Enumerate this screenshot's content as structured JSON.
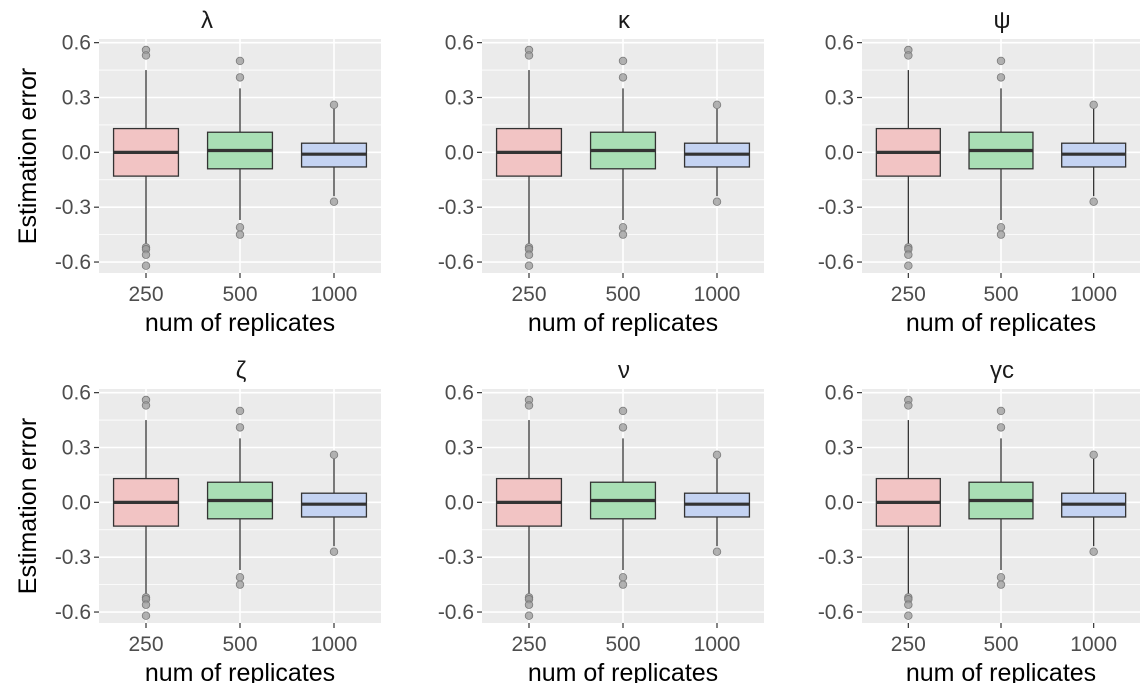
{
  "figure": {
    "ylabel": "Estimation error",
    "xlabel": "num of replicates"
  },
  "chart_data": [
    {
      "type": "box",
      "title": "λ",
      "xlabel": "num of replicates",
      "ylabel": "Estimation error",
      "categories": [
        "250",
        "500",
        "1000"
      ],
      "ylim": [
        -0.66,
        0.62
      ],
      "yticks": [
        0.6,
        0.3,
        0.0,
        -0.3,
        -0.6
      ],
      "ytick_labels": [
        "0.6",
        "0.3",
        "0.0",
        "-0.3",
        "-0.6"
      ],
      "grid": true,
      "colors": [
        "#f2c4c4",
        "#a9dfb5",
        "#c4d3f2"
      ],
      "boxes": [
        {
          "category": "250",
          "q1": -0.13,
          "median": 0.0,
          "q3": 0.13,
          "whisker_low": -0.5,
          "whisker_high": 0.45,
          "outliers": [
            0.56,
            0.53,
            -0.52,
            -0.53,
            -0.56,
            -0.62
          ]
        },
        {
          "category": "500",
          "q1": -0.09,
          "median": 0.01,
          "q3": 0.11,
          "whisker_low": -0.37,
          "whisker_high": 0.35,
          "outliers": [
            0.5,
            0.41,
            -0.41,
            -0.45
          ]
        },
        {
          "category": "1000",
          "q1": -0.08,
          "median": -0.01,
          "q3": 0.05,
          "whisker_low": -0.24,
          "whisker_high": 0.24,
          "outliers": [
            0.26,
            -0.27
          ]
        }
      ]
    },
    {
      "type": "box",
      "title": "κ",
      "xlabel": "num of replicates",
      "ylabel": "",
      "categories": [
        "250",
        "500",
        "1000"
      ],
      "ylim": [
        -0.66,
        0.62
      ],
      "yticks": [
        0.6,
        0.3,
        0.0,
        -0.3,
        -0.6
      ],
      "ytick_labels": [
        "0.6",
        "0.3",
        "0.0",
        "-0.3",
        "-0.6"
      ],
      "grid": true,
      "colors": [
        "#f2c4c4",
        "#a9dfb5",
        "#c4d3f2"
      ],
      "boxes": [
        {
          "category": "250",
          "q1": -0.13,
          "median": 0.0,
          "q3": 0.13,
          "whisker_low": -0.5,
          "whisker_high": 0.45,
          "outliers": [
            0.56,
            0.53,
            -0.52,
            -0.53,
            -0.56,
            -0.62
          ]
        },
        {
          "category": "500",
          "q1": -0.09,
          "median": 0.01,
          "q3": 0.11,
          "whisker_low": -0.37,
          "whisker_high": 0.35,
          "outliers": [
            0.5,
            0.41,
            -0.41,
            -0.45
          ]
        },
        {
          "category": "1000",
          "q1": -0.08,
          "median": -0.01,
          "q3": 0.05,
          "whisker_low": -0.24,
          "whisker_high": 0.24,
          "outliers": [
            0.26,
            -0.27
          ]
        }
      ]
    },
    {
      "type": "box",
      "title": "ψ",
      "xlabel": "num of replicates",
      "ylabel": "",
      "categories": [
        "250",
        "500",
        "1000"
      ],
      "ylim": [
        -0.66,
        0.62
      ],
      "yticks": [
        0.6,
        0.3,
        0.0,
        -0.3,
        -0.6
      ],
      "ytick_labels": [
        "0.6",
        "0.3",
        "0.0",
        "-0.3",
        "-0.6"
      ],
      "grid": true,
      "colors": [
        "#f2c4c4",
        "#a9dfb5",
        "#c4d3f2"
      ],
      "boxes": [
        {
          "category": "250",
          "q1": -0.13,
          "median": 0.0,
          "q3": 0.13,
          "whisker_low": -0.5,
          "whisker_high": 0.45,
          "outliers": [
            0.56,
            0.53,
            -0.52,
            -0.53,
            -0.56,
            -0.62
          ]
        },
        {
          "category": "500",
          "q1": -0.09,
          "median": 0.01,
          "q3": 0.11,
          "whisker_low": -0.37,
          "whisker_high": 0.35,
          "outliers": [
            0.5,
            0.41,
            -0.41,
            -0.45
          ]
        },
        {
          "category": "1000",
          "q1": -0.08,
          "median": -0.01,
          "q3": 0.05,
          "whisker_low": -0.24,
          "whisker_high": 0.24,
          "outliers": [
            0.26,
            -0.27
          ]
        }
      ]
    },
    {
      "type": "box",
      "title": "ζ",
      "xlabel": "num of replicates",
      "ylabel": "Estimation error",
      "categories": [
        "250",
        "500",
        "1000"
      ],
      "ylim": [
        -0.66,
        0.62
      ],
      "yticks": [
        0.6,
        0.3,
        0.0,
        -0.3,
        -0.6
      ],
      "ytick_labels": [
        "0.6",
        "0.3",
        "0.0",
        "-0.3",
        "-0.6"
      ],
      "grid": true,
      "colors": [
        "#f2c4c4",
        "#a9dfb5",
        "#c4d3f2"
      ],
      "boxes": [
        {
          "category": "250",
          "q1": -0.13,
          "median": 0.0,
          "q3": 0.13,
          "whisker_low": -0.5,
          "whisker_high": 0.45,
          "outliers": [
            0.56,
            0.53,
            -0.52,
            -0.53,
            -0.56,
            -0.62
          ]
        },
        {
          "category": "500",
          "q1": -0.09,
          "median": 0.01,
          "q3": 0.11,
          "whisker_low": -0.37,
          "whisker_high": 0.35,
          "outliers": [
            0.5,
            0.41,
            -0.41,
            -0.45
          ]
        },
        {
          "category": "1000",
          "q1": -0.08,
          "median": -0.01,
          "q3": 0.05,
          "whisker_low": -0.24,
          "whisker_high": 0.24,
          "outliers": [
            0.26,
            -0.27
          ]
        }
      ]
    },
    {
      "type": "box",
      "title": "ν",
      "xlabel": "num of replicates",
      "ylabel": "",
      "categories": [
        "250",
        "500",
        "1000"
      ],
      "ylim": [
        -0.66,
        0.62
      ],
      "yticks": [
        0.6,
        0.3,
        0.0,
        -0.3,
        -0.6
      ],
      "ytick_labels": [
        "0.6",
        "0.3",
        "0.0",
        "-0.3",
        "-0.6"
      ],
      "grid": true,
      "colors": [
        "#f2c4c4",
        "#a9dfb5",
        "#c4d3f2"
      ],
      "boxes": [
        {
          "category": "250",
          "q1": -0.13,
          "median": 0.0,
          "q3": 0.13,
          "whisker_low": -0.5,
          "whisker_high": 0.45,
          "outliers": [
            0.56,
            0.53,
            -0.52,
            -0.53,
            -0.56,
            -0.62
          ]
        },
        {
          "category": "500",
          "q1": -0.09,
          "median": 0.01,
          "q3": 0.11,
          "whisker_low": -0.37,
          "whisker_high": 0.35,
          "outliers": [
            0.5,
            0.41,
            -0.41,
            -0.45
          ]
        },
        {
          "category": "1000",
          "q1": -0.08,
          "median": -0.01,
          "q3": 0.05,
          "whisker_low": -0.24,
          "whisker_high": 0.24,
          "outliers": [
            0.26,
            -0.27
          ]
        }
      ]
    },
    {
      "type": "box",
      "title": "γc",
      "xlabel": "num of replicates",
      "ylabel": "",
      "categories": [
        "250",
        "500",
        "1000"
      ],
      "ylim": [
        -0.66,
        0.62
      ],
      "yticks": [
        0.6,
        0.3,
        0.0,
        -0.3,
        -0.6
      ],
      "ytick_labels": [
        "0.6",
        "0.3",
        "0.0",
        "-0.3",
        "-0.6"
      ],
      "grid": true,
      "colors": [
        "#f2c4c4",
        "#a9dfb5",
        "#c4d3f2"
      ],
      "boxes": [
        {
          "category": "250",
          "q1": -0.13,
          "median": 0.0,
          "q3": 0.13,
          "whisker_low": -0.5,
          "whisker_high": 0.45,
          "outliers": [
            0.56,
            0.53,
            -0.52,
            -0.53,
            -0.56,
            -0.62
          ]
        },
        {
          "category": "500",
          "q1": -0.09,
          "median": 0.01,
          "q3": 0.11,
          "whisker_low": -0.37,
          "whisker_high": 0.35,
          "outliers": [
            0.5,
            0.41,
            -0.41,
            -0.45
          ]
        },
        {
          "category": "1000",
          "q1": -0.08,
          "median": -0.01,
          "q3": 0.05,
          "whisker_low": -0.24,
          "whisker_high": 0.24,
          "outliers": [
            0.26,
            -0.27
          ]
        }
      ]
    }
  ]
}
